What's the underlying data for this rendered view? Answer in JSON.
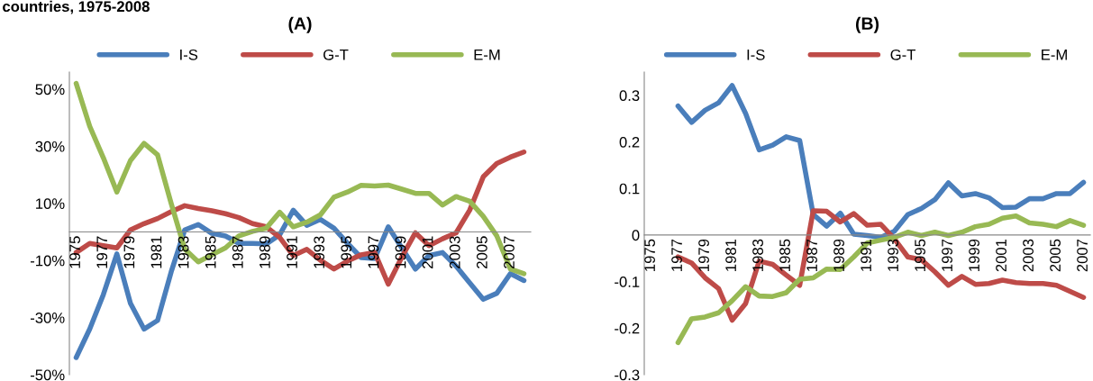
{
  "chart_data": [
    {
      "type": "line",
      "title": "(A)",
      "annotations": [
        "countries, 1975-2008"
      ],
      "categories": [
        "1975",
        null,
        "1977",
        null,
        "1979",
        null,
        "1981",
        null,
        "1983",
        null,
        "1985",
        null,
        "1987",
        null,
        "1989",
        null,
        "1991",
        null,
        "1993",
        null,
        "1995",
        null,
        "1997",
        null,
        "1999",
        null,
        "2001",
        null,
        "2003",
        null,
        "2005",
        null,
        "2007",
        null
      ],
      "series": [
        {
          "name": "I-S",
          "color": "#4a7ebb",
          "values": [
            -44,
            -34,
            -22,
            -7.7,
            -25,
            -34,
            -31,
            -14,
            0.7,
            2.6,
            -0.5,
            -1.4,
            -4,
            -4,
            -4.2,
            -1,
            7.6,
            2.3,
            4.4,
            1.3,
            -4,
            -9,
            -9.3,
            1.8,
            -5.6,
            -13,
            -8.3,
            -7.2,
            -12,
            -17.8,
            -23.6,
            -21.5,
            -14.6,
            -17
          ]
        },
        {
          "name": "G-T",
          "color": "#be4b48",
          "values": [
            -7.2,
            -4,
            -4.8,
            -5.6,
            0.7,
            2.9,
            4.7,
            7.1,
            9.2,
            8.2,
            7.4,
            6.4,
            5,
            2.9,
            1.8,
            -1.9,
            -8.3,
            -6.1,
            -9.9,
            -13,
            -10.2,
            -8,
            -7.2,
            -18.3,
            -8.8,
            -0.3,
            -4.8,
            -2.4,
            -0.3,
            7.6,
            19.3,
            24,
            26.2,
            28
          ]
        },
        {
          "name": "E-M",
          "color": "#98b954",
          "values": [
            52,
            37,
            26,
            14,
            25,
            31,
            27,
            10,
            -6,
            -10.5,
            -8,
            -5.6,
            -1.4,
            0.2,
            1.3,
            6.9,
            1.8,
            3.4,
            6,
            12.2,
            14,
            16.3,
            16.1,
            16.4,
            15,
            13.5,
            13.5,
            9.4,
            12.4,
            10.8,
            5.5,
            -1.4,
            -13,
            -14.6
          ]
        }
      ],
      "ylim": [
        -50,
        56
      ],
      "yticks": [
        {
          "value": -50,
          "label": "-50%"
        },
        {
          "value": -30,
          "label": "-30%"
        },
        {
          "value": -10,
          "label": "-10%"
        },
        {
          "value": 10,
          "label": "10%"
        },
        {
          "value": 30,
          "label": "30%"
        },
        {
          "value": 50,
          "label": "50%"
        }
      ],
      "legend": "top",
      "marker": "none",
      "line_style": "solid",
      "grid": false
    },
    {
      "type": "line",
      "title": "(B)",
      "categories": [
        "1975",
        null,
        "1977",
        null,
        "1979",
        null,
        "1981",
        null,
        "1983",
        null,
        "1985",
        null,
        "1987",
        null,
        "1989",
        null,
        "1991",
        null,
        "1993",
        null,
        "1995",
        null,
        "1997",
        null,
        "1999",
        null,
        "2001",
        null,
        "2003",
        null,
        "2005",
        null,
        "2007"
      ],
      "series": [
        {
          "name": "I-S",
          "color": "#4a7ebb",
          "values": [
            null,
            null,
            0.277,
            0.242,
            0.268,
            0.284,
            0.321,
            0.261,
            0.183,
            0.193,
            0.211,
            0.203,
            0.044,
            0.019,
            0.047,
            0.002,
            -0.001,
            -0.005,
            0.008,
            0.044,
            0.057,
            0.076,
            0.112,
            0.084,
            0.089,
            0.08,
            0.059,
            0.06,
            0.078,
            0.078,
            0.089,
            0.089,
            0.113
          ]
        },
        {
          "name": "G-T",
          "color": "#be4b48",
          "values": [
            null,
            null,
            -0.047,
            -0.06,
            -0.092,
            -0.115,
            -0.183,
            -0.147,
            -0.056,
            -0.063,
            -0.086,
            -0.108,
            0.052,
            0.051,
            0.028,
            0.046,
            0.021,
            0.023,
            -0.008,
            -0.047,
            -0.053,
            -0.079,
            -0.108,
            -0.089,
            -0.106,
            -0.104,
            -0.097,
            -0.102,
            -0.104,
            -0.104,
            -0.108,
            -0.121,
            -0.134
          ]
        },
        {
          "name": "E-M",
          "color": "#98b954",
          "values": [
            null,
            null,
            -0.231,
            -0.18,
            -0.176,
            -0.167,
            -0.141,
            -0.111,
            -0.131,
            -0.132,
            -0.124,
            -0.095,
            -0.092,
            -0.073,
            -0.074,
            -0.047,
            -0.017,
            -0.011,
            -0.005,
            0.006,
            -0.001,
            0.006,
            -0.001,
            0.006,
            0.018,
            0.023,
            0.036,
            0.041,
            0.026,
            0.023,
            0.018,
            0.031,
            0.021
          ]
        }
      ],
      "ylim": [
        -0.3,
        0.35
      ],
      "yticks": [
        -0.3,
        -0.2,
        -0.1,
        0,
        0.1,
        0.2,
        0.3
      ],
      "legend": "top",
      "marker": "none",
      "line_style": "solid",
      "grid": false
    }
  ]
}
